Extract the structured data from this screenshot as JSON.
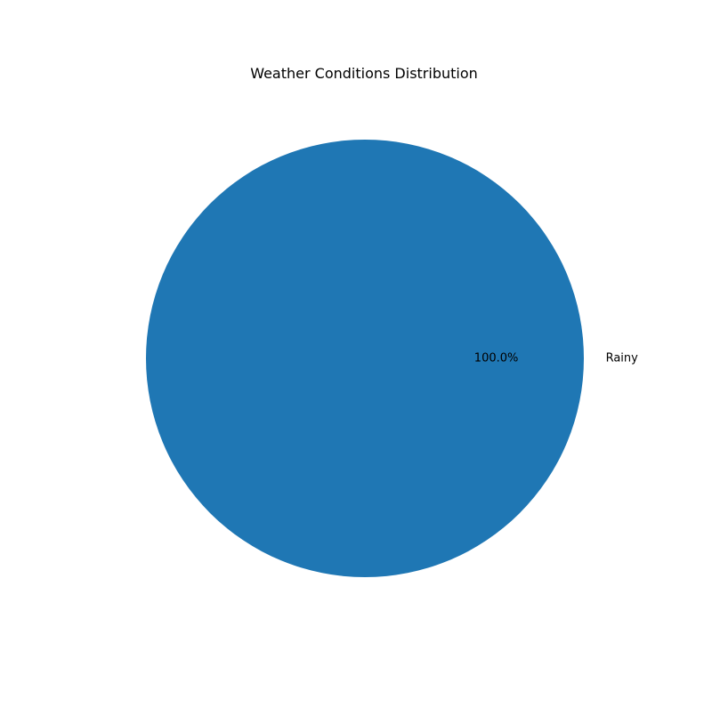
{
  "chart_data": {
    "type": "pie",
    "title": "Weather Conditions Distribution",
    "slices": [
      {
        "label": "Rainy",
        "value": 100.0,
        "percent_label": "100.0%",
        "color": "#1f77b4"
      }
    ],
    "autopct_format": "%1.1f%%"
  }
}
